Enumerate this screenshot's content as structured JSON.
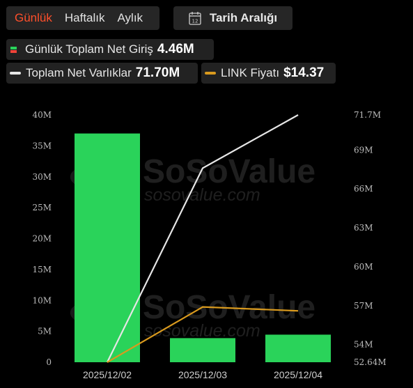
{
  "tabs": [
    {
      "label": "Günlük",
      "active": true
    },
    {
      "label": "Haftalık",
      "active": false
    },
    {
      "label": "Aylık",
      "active": false
    }
  ],
  "date_range": {
    "label": "Tarih Aralığı",
    "icon": "calendar-icon",
    "icon_day": "12"
  },
  "legend": {
    "daily": {
      "name": "Günlük Toplam Net Giriş",
      "value": "4.46M",
      "icon": "bar-swatch-icon",
      "color_up": "#2ad35a",
      "color_down": "#f04438"
    },
    "assets": {
      "name": "Toplam Net Varlıklar",
      "value": "71.70M",
      "icon": "line-swatch-icon",
      "color": "#e6e6e6"
    },
    "price": {
      "name": "LINK Fiyatı",
      "value": "$14.37",
      "icon": "line-swatch-icon",
      "color": "#d99a1e"
    }
  },
  "watermark": {
    "brand": "SoSoValue",
    "url": "sosovalue.com"
  },
  "chart_data": {
    "type": "bar",
    "categories": [
      "2025/12/02",
      "2025/12/03",
      "2025/12/04"
    ],
    "left_axis": {
      "ticks": [
        "0",
        "5M",
        "10M",
        "15M",
        "20M",
        "25M",
        "30M",
        "35M",
        "40M"
      ],
      "range": [
        0,
        40000000
      ]
    },
    "right_axis": {
      "ticks": [
        "52.64M",
        "54M",
        "57M",
        "60M",
        "63M",
        "66M",
        "69M",
        "71.7M"
      ],
      "tick_values": [
        52.64,
        54,
        57,
        60,
        63,
        66,
        69,
        71.7
      ],
      "range": [
        52.64,
        71.7
      ]
    },
    "series": [
      {
        "name": "Günlük Toplam Net Giriş",
        "kind": "bar",
        "axis": "left",
        "color": "#2ad35a",
        "values": [
          37000000,
          3900000,
          4460000
        ]
      },
      {
        "name": "Toplam Net Varlıklar",
        "kind": "line",
        "axis": "right",
        "color": "#e6e6e6",
        "values": [
          52.64,
          67.6,
          71.7
        ]
      },
      {
        "name": "LINK Fiyatı",
        "kind": "line",
        "axis": "right",
        "color": "#d99a1e",
        "values": [
          52.64,
          56.9,
          56.6
        ]
      }
    ]
  }
}
